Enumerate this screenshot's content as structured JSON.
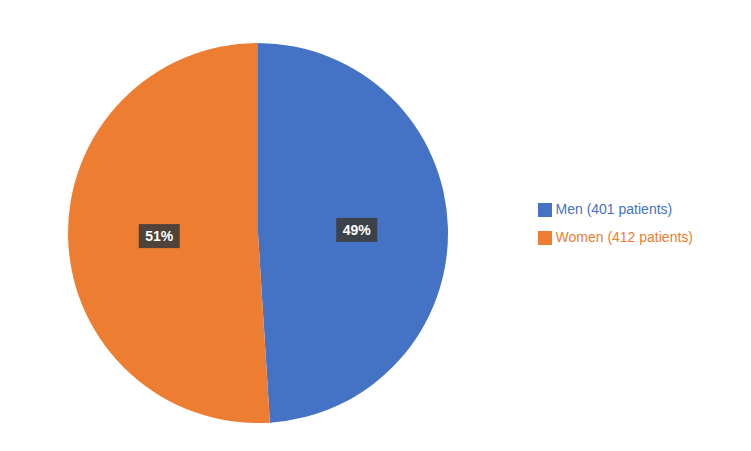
{
  "chart_data": {
    "type": "pie",
    "categories": [
      "Men (401 patients)",
      "Women (412 patients)"
    ],
    "values": [
      49,
      51
    ],
    "value_labels": [
      "49%",
      "51%"
    ],
    "colors": [
      "#4472C4",
      "#ED7D31"
    ],
    "data_labels": true,
    "legend": "right"
  }
}
